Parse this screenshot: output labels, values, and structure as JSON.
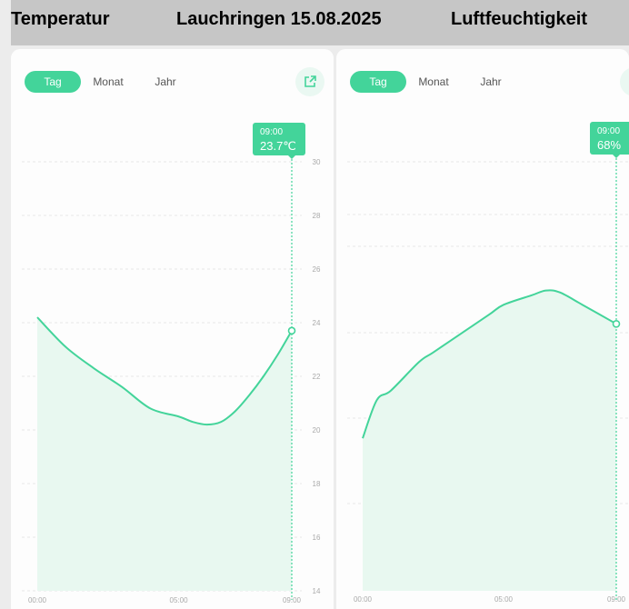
{
  "header": {
    "left_title": "Temperatur",
    "center_title": "Lauchringen 15.08.2025",
    "right_title": "Luftfeuchtigkeit"
  },
  "tabs": [
    "Tag",
    "Monat",
    "Jahr"
  ],
  "active_tab": "Tag",
  "colors": {
    "accent": "#43d49a",
    "fill": "#e8f8f0",
    "grid": "#e6e6e6"
  },
  "share_icon": "share-external-icon",
  "chart_data": [
    {
      "type": "area",
      "title": "Temperatur",
      "x_ticks": [
        "00:00",
        "05:00",
        "09:00"
      ],
      "x_range": [
        0,
        9
      ],
      "ylim": [
        14,
        30
      ],
      "y_ticks": [
        "14",
        "16",
        "18",
        "20",
        "22",
        "24",
        "26",
        "28",
        "30"
      ],
      "y_tick_values": [
        14,
        16,
        18,
        20,
        22,
        24,
        26,
        28,
        30
      ],
      "x": [
        0,
        1,
        2,
        3,
        4,
        5,
        5.5,
        6,
        6.5,
        7,
        7.5,
        8,
        8.5,
        9
      ],
      "values": [
        24.2,
        23.1,
        22.3,
        21.6,
        20.8,
        20.5,
        20.3,
        20.2,
        20.3,
        20.7,
        21.3,
        22.0,
        22.8,
        23.7
      ],
      "selected": {
        "time": "09:00",
        "value": "23.7℃"
      }
    },
    {
      "type": "area",
      "title": "Luftfeuchtigkeit",
      "x_ticks": [
        "00:00",
        "05:00",
        "09:00"
      ],
      "x_range": [
        0,
        9
      ],
      "values": [
        56,
        60,
        61,
        64,
        65,
        67,
        69,
        70,
        71,
        71.5,
        71.3,
        70,
        68
      ],
      "x": [
        0,
        0.5,
        1,
        2,
        2.5,
        3.5,
        4.5,
        5,
        6,
        6.5,
        7,
        7.8,
        9
      ],
      "ylim": [
        40,
        85
      ],
      "selected": {
        "time": "09:00",
        "value": "68%"
      }
    }
  ]
}
